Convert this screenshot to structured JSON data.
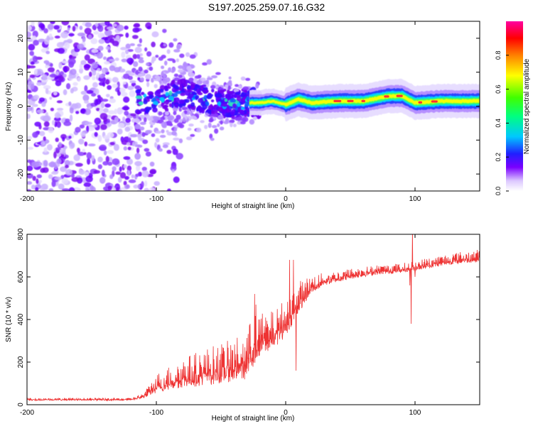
{
  "title": "S197.2025.259.07.16.G32",
  "colors": {
    "snr_line": "#ee3333",
    "background": "#ffffff",
    "axis": "#000000"
  },
  "chart_data": [
    {
      "id": "spectrogram",
      "type": "heatmap",
      "title": "",
      "xlabel": "Height of straight line (km)",
      "ylabel": "Frequency (Hz)",
      "xlim": [
        -200,
        150
      ],
      "ylim": [
        -25,
        25
      ],
      "xticks": [
        -200,
        -100,
        0,
        100
      ],
      "xtick_labels": [
        "-200",
        "-100",
        "0",
        "100"
      ],
      "yticks": [
        -20,
        -10,
        0,
        10,
        20
      ],
      "ytick_labels": [
        "-20",
        "-10",
        "0",
        "10",
        "20"
      ],
      "ridge_frequency": [
        {
          "x": -112,
          "y": 1.5
        },
        {
          "x": -100,
          "y": 2
        },
        {
          "x": -90,
          "y": 3
        },
        {
          "x": -80,
          "y": 4
        },
        {
          "x": -70,
          "y": 3
        },
        {
          "x": -60,
          "y": 2
        },
        {
          "x": -50,
          "y": 1
        },
        {
          "x": -40,
          "y": 0.5
        },
        {
          "x": -30,
          "y": 1
        },
        {
          "x": -20,
          "y": 1
        },
        {
          "x": -10,
          "y": 1.5
        },
        {
          "x": 0,
          "y": 0.5
        },
        {
          "x": 10,
          "y": 2
        },
        {
          "x": 20,
          "y": 1
        },
        {
          "x": 40,
          "y": 1.5
        },
        {
          "x": 60,
          "y": 1.5
        },
        {
          "x": 80,
          "y": 3
        },
        {
          "x": 90,
          "y": 3
        },
        {
          "x": 100,
          "y": 1
        },
        {
          "x": 120,
          "y": 1.5
        },
        {
          "x": 150,
          "y": 1.5
        }
      ],
      "noise_region_x": [
        -200,
        -112
      ],
      "colorbar": {
        "label": "Normalized spectral amplitude",
        "range": [
          0,
          1
        ],
        "ticks": [
          0.0,
          0.2,
          0.4,
          0.6,
          0.8
        ],
        "tick_labels": [
          "0.0",
          "0.2",
          "0.4",
          "0.6",
          "0.8"
        ]
      }
    },
    {
      "id": "snr",
      "type": "line",
      "title": "",
      "xlabel": "Height of straight line (km)",
      "ylabel": "SNR (10 * v/v)",
      "xlim": [
        -200,
        150
      ],
      "ylim": [
        0,
        800
      ],
      "xticks": [
        -200,
        -100,
        0,
        100
      ],
      "xtick_labels": [
        "-200",
        "-100",
        "0",
        "100"
      ],
      "yticks": [
        0,
        200,
        400,
        600,
        800
      ],
      "ytick_labels": [
        "0",
        "200",
        "400",
        "600",
        "800"
      ],
      "series": [
        {
          "name": "SNR",
          "envelope": [
            {
              "x": -200,
              "base": 20,
              "amp": 12
            },
            {
              "x": -120,
              "base": 20,
              "amp": 12
            },
            {
              "x": -110,
              "base": 30,
              "amp": 25
            },
            {
              "x": -100,
              "base": 55,
              "amp": 90
            },
            {
              "x": -80,
              "base": 80,
              "amp": 140
            },
            {
              "x": -60,
              "base": 90,
              "amp": 180
            },
            {
              "x": -40,
              "base": 110,
              "amp": 200
            },
            {
              "x": -30,
              "base": 120,
              "amp": 230
            },
            {
              "x": -25,
              "base": 180,
              "amp": 250
            },
            {
              "x": -20,
              "base": 230,
              "amp": 200
            },
            {
              "x": -10,
              "base": 260,
              "amp": 180
            },
            {
              "x": 0,
              "base": 320,
              "amp": 180
            },
            {
              "x": 10,
              "base": 430,
              "amp": 150
            },
            {
              "x": 20,
              "base": 520,
              "amp": 90
            },
            {
              "x": 30,
              "base": 560,
              "amp": 60
            },
            {
              "x": 50,
              "base": 590,
              "amp": 50
            },
            {
              "x": 70,
              "base": 610,
              "amp": 45
            },
            {
              "x": 90,
              "base": 620,
              "amp": 45
            },
            {
              "x": 110,
              "base": 640,
              "amp": 50
            },
            {
              "x": 130,
              "base": 660,
              "amp": 55
            },
            {
              "x": 150,
              "base": 670,
              "amp": 60
            }
          ],
          "spikes": [
            {
              "x": 98,
              "y": 830
            },
            {
              "x": 97,
              "y": 380
            },
            {
              "x": 96,
              "y": 560
            },
            {
              "x": 100,
              "y": 600
            },
            {
              "x": 6,
              "y": 680
            },
            {
              "x": 3,
              "y": 680
            },
            {
              "x": -24,
              "y": 520
            },
            {
              "x": -23,
              "y": 470
            },
            {
              "x": 8,
              "y": 160
            }
          ]
        }
      ]
    }
  ]
}
